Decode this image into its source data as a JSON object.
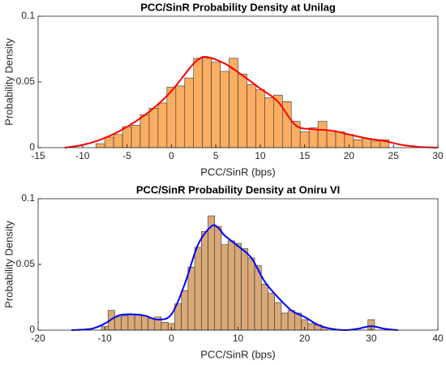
{
  "chart_data": [
    {
      "type": "histogram",
      "title": "PCC/SinR Probability Density at Unilag",
      "xlabel": "PCC/SinR (bps)",
      "ylabel": "Probability Density",
      "bins": [
        -8.5,
        -7.5,
        -6.5,
        -5.5,
        -4.5,
        -3.5,
        -2.5,
        -1.5,
        -0.5,
        0.5,
        1.5,
        2.5,
        3.5,
        4.5,
        5.5,
        6.5,
        7.5,
        8.5,
        9.5,
        10.5,
        11.5,
        12.5,
        13.5,
        14.5,
        15.5,
        16.5,
        17.5,
        18.5,
        19.5,
        20.5,
        21.5,
        22.5,
        23.5,
        24.5
      ],
      "values": [
        0.003,
        0.008,
        0.01,
        0.016,
        0.017,
        0.025,
        0.03,
        0.034,
        0.046,
        0.047,
        0.053,
        0.068,
        0.068,
        0.065,
        0.058,
        0.068,
        0.056,
        0.048,
        0.044,
        0.038,
        0.04,
        0.035,
        0.02,
        0.012,
        0.015,
        0.02,
        0.013,
        0.012,
        0.01,
        0.006,
        0.007,
        0.005,
        0.006
      ],
      "color": "#fbae62",
      "curve": {
        "x": [
          -12,
          -10,
          -8,
          -6,
          -4,
          -2,
          0,
          2,
          3,
          4,
          6,
          8,
          10,
          12,
          14,
          16,
          18,
          20,
          22,
          24,
          26,
          28,
          30
        ],
        "values": [
          0,
          0.002,
          0.006,
          0.012,
          0.02,
          0.03,
          0.043,
          0.06,
          0.067,
          0.069,
          0.064,
          0.055,
          0.045,
          0.035,
          0.017,
          0.014,
          0.013,
          0.01,
          0.007,
          0.005,
          0.002,
          0.0005,
          0
        ],
        "color": "#ff0000"
      },
      "xlim": [
        -15,
        30
      ],
      "xticks": [
        -15,
        -10,
        -5,
        0,
        5,
        10,
        15,
        20,
        25,
        30
      ],
      "ylim": [
        0,
        0.1
      ],
      "yticks": [
        0,
        0.05,
        0.1
      ]
    },
    {
      "type": "histogram",
      "title": "PCC/SinR Probability Density at Oniru VI",
      "xlabel": "PCC/SinR (bps)",
      "ylabel": "Probability Density",
      "bins": [
        -10.5,
        -9.5,
        -8.5,
        -7.5,
        -6.5,
        -5.5,
        -4.5,
        -3.5,
        -2.5,
        -1.5,
        -0.5,
        0.5,
        1.5,
        2.5,
        3.5,
        4.5,
        5.5,
        6.5,
        7.5,
        8.5,
        9.5,
        10.5,
        11.5,
        12.5,
        13.5,
        14.5,
        15.5,
        16.5,
        17.5,
        18.5,
        19.5,
        20.5,
        21.5,
        22.5,
        23.5,
        24.5,
        25.5,
        26.5,
        27.5,
        28.5,
        29.5,
        30.5
      ],
      "values": [
        0.003,
        0.015,
        0.01,
        0.011,
        0.012,
        0.012,
        0.011,
        0.009,
        0.01,
        0.006,
        0.005,
        0.02,
        0.03,
        0.048,
        0.063,
        0.075,
        0.087,
        0.079,
        0.065,
        0.068,
        0.066,
        0.062,
        0.055,
        0.049,
        0.035,
        0.028,
        0.021,
        0.013,
        0.015,
        0.013,
        0.008,
        0.005,
        0.004,
        0.002,
        0,
        0,
        0,
        0,
        0,
        0,
        0.008
      ],
      "color": "#d9a877",
      "curve": {
        "x": [
          -15,
          -12,
          -10,
          -8,
          -6,
          -4,
          -2,
          0,
          2,
          4,
          6,
          7,
          8,
          10,
          12,
          14,
          16,
          18,
          20,
          22,
          24,
          26,
          28,
          30,
          32,
          34
        ],
        "values": [
          0,
          0.001,
          0.005,
          0.011,
          0.012,
          0.011,
          0.008,
          0.012,
          0.035,
          0.065,
          0.079,
          0.078,
          0.072,
          0.064,
          0.055,
          0.037,
          0.025,
          0.015,
          0.01,
          0.004,
          0.001,
          0,
          0.001,
          0.003,
          0.001,
          0
        ],
        "color": "#0000ff"
      },
      "xlim": [
        -20,
        40
      ],
      "xticks": [
        -20,
        -10,
        0,
        10,
        20,
        30,
        40
      ],
      "ylim": [
        0,
        0.1
      ],
      "yticks": [
        0,
        0.05,
        0.1
      ]
    }
  ]
}
